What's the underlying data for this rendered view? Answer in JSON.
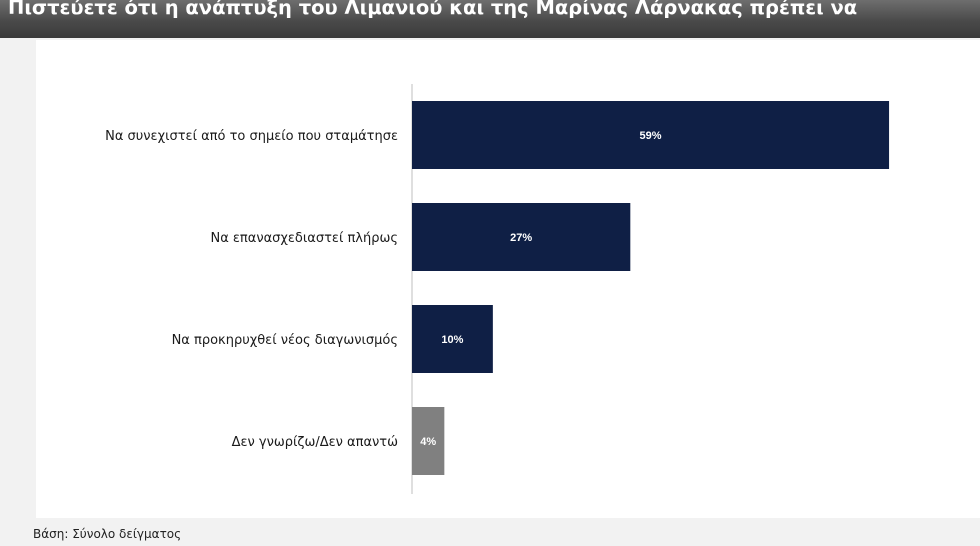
{
  "header": {
    "title": "Πιστεύετε ότι η ανάπτυξη του Λιμανιού και της Μαρίνας Λάρνακας πρέπει να"
  },
  "footer": {
    "base_note": "Βάση: Σύνολο δείγματος"
  },
  "chart_data": {
    "type": "bar",
    "orientation": "horizontal",
    "categories": [
      "Να συνεχιστεί από το σημείο που σταμάτησε",
      "Να επανασχεδιαστεί πλήρως",
      "Να προκηρυχθεί νέος διαγωνισμός",
      "Δεν γνωρίζω/Δεν απαντώ"
    ],
    "values": [
      59,
      27,
      10,
      4
    ],
    "data_labels": [
      "59%",
      "27%",
      "10%",
      "4%"
    ],
    "colors": [
      "#0f1f45",
      "#0f1f45",
      "#0f1f45",
      "#808080"
    ],
    "label_color": "#ffffff",
    "xlim": [
      0,
      70
    ],
    "grid": false,
    "legend": "none"
  }
}
